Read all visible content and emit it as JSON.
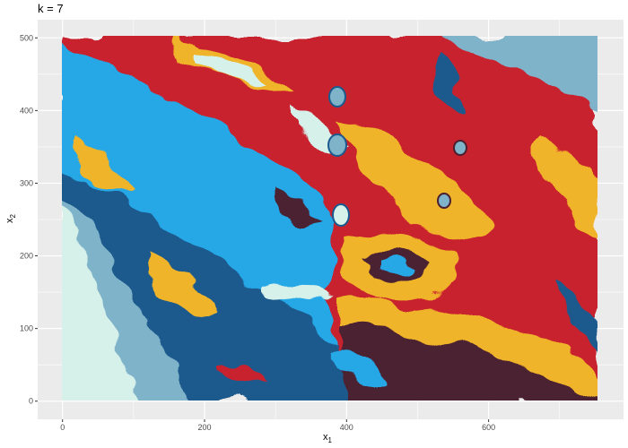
{
  "chart_data": {
    "type": "heatmap",
    "title": "k = 7",
    "xlabel": {
      "base": "x",
      "sub": "1"
    },
    "ylabel": {
      "base": "x",
      "sub": "2"
    },
    "xlim": [
      -35,
      790
    ],
    "ylim": [
      -25,
      525
    ],
    "x_ticks": [
      0,
      200,
      400,
      600
    ],
    "y_ticks": [
      0,
      100,
      200,
      300,
      400,
      500
    ],
    "x_tick_labels": [
      "0",
      "200",
      "400",
      "600"
    ],
    "y_tick_labels": [
      "0",
      "100",
      "200",
      "300",
      "400",
      "500"
    ],
    "grid": true,
    "legend": "none",
    "palette": [
      "#d6f0ea",
      "#7fb3c9",
      "#1b5a8e",
      "#26a7e6",
      "#f0b429",
      "#c8202f",
      "#4b2030"
    ],
    "panel_background": "#ebebeb",
    "gridline_color": "#ffffff",
    "image_extent": {
      "x": [
        0,
        750
      ],
      "y": [
        0,
        500
      ]
    }
  }
}
